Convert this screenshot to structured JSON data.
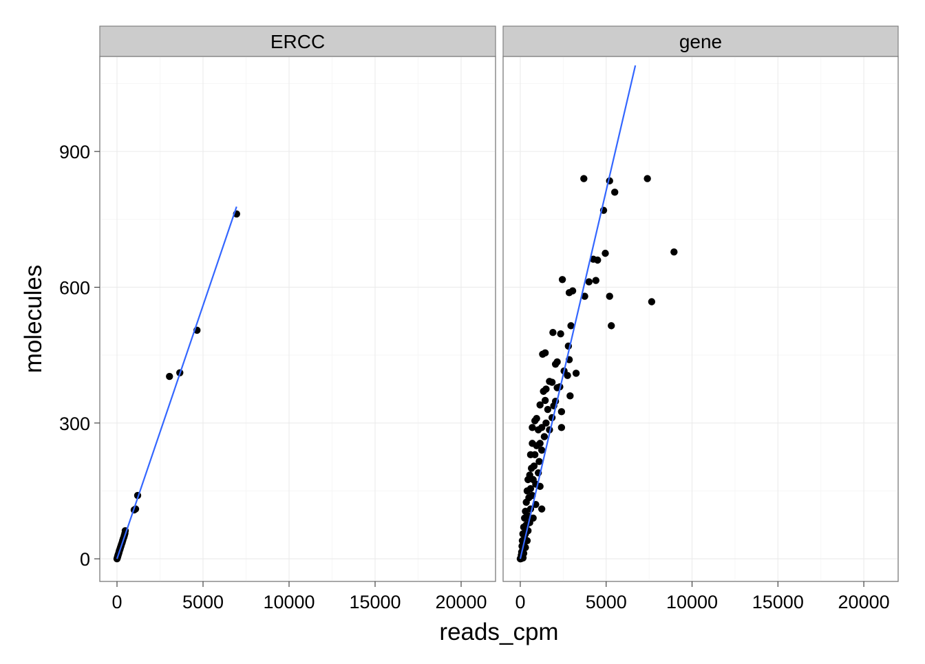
{
  "chart_data": {
    "type": "scatter",
    "title": "",
    "xlabel": "reads_cpm",
    "ylabel": "molecules",
    "xlim": [
      -1000,
      22000
    ],
    "ylim": [
      -50,
      1110
    ],
    "x_ticks": [
      0,
      5000,
      10000,
      15000,
      20000
    ],
    "x_tick_labels": [
      "0",
      "5000",
      "10000",
      "15000",
      "20000"
    ],
    "y_ticks": [
      0,
      300,
      600,
      900
    ],
    "y_tick_labels": [
      "0",
      "300",
      "600",
      "900"
    ],
    "grid": true,
    "legend": "none",
    "colors": {
      "points": "#000000",
      "fit_line": "#3366ff",
      "strip": "#cccccc",
      "grid": "#ebebeb"
    },
    "panels": [
      {
        "label": "ERCC",
        "points": [
          [
            0,
            0
          ],
          [
            20,
            2
          ],
          [
            30,
            4
          ],
          [
            50,
            6
          ],
          [
            60,
            8
          ],
          [
            80,
            10
          ],
          [
            100,
            12
          ],
          [
            120,
            15
          ],
          [
            140,
            18
          ],
          [
            160,
            20
          ],
          [
            180,
            22
          ],
          [
            200,
            25
          ],
          [
            230,
            28
          ],
          [
            260,
            32
          ],
          [
            300,
            36
          ],
          [
            330,
            40
          ],
          [
            360,
            44
          ],
          [
            400,
            48
          ],
          [
            430,
            52
          ],
          [
            460,
            56
          ],
          [
            480,
            62
          ],
          [
            1000,
            108
          ],
          [
            1080,
            110
          ],
          [
            1200,
            140
          ],
          [
            3050,
            403
          ],
          [
            3650,
            411
          ],
          [
            4650,
            505
          ],
          [
            6950,
            762
          ]
        ],
        "fit": {
          "x": [
            0,
            6950
          ],
          "y": [
            0,
            778
          ]
        }
      },
      {
        "label": "gene",
        "points": [
          [
            3700,
            840
          ],
          [
            5200,
            835
          ],
          [
            7400,
            840
          ],
          [
            5500,
            810
          ],
          [
            4850,
            770
          ],
          [
            8950,
            678
          ],
          [
            4950,
            675
          ],
          [
            4500,
            660
          ],
          [
            4250,
            662
          ],
          [
            4400,
            615
          ],
          [
            4000,
            612
          ],
          [
            2450,
            617
          ],
          [
            3050,
            592
          ],
          [
            2850,
            588
          ],
          [
            3750,
            580
          ],
          [
            5200,
            580
          ],
          [
            7650,
            568
          ],
          [
            2950,
            515
          ],
          [
            5300,
            515
          ],
          [
            1900,
            500
          ],
          [
            2350,
            497
          ],
          [
            2800,
            470
          ],
          [
            2850,
            440
          ],
          [
            2150,
            435
          ],
          [
            2050,
            430
          ],
          [
            1450,
            455
          ],
          [
            1300,
            452
          ],
          [
            2550,
            415
          ],
          [
            3250,
            410
          ],
          [
            2750,
            405
          ],
          [
            1850,
            390
          ],
          [
            1700,
            392
          ],
          [
            2300,
            380
          ],
          [
            2150,
            378
          ],
          [
            1500,
            375
          ],
          [
            2900,
            360
          ],
          [
            1350,
            370
          ],
          [
            1450,
            350
          ],
          [
            2050,
            348
          ],
          [
            1950,
            338
          ],
          [
            1600,
            330
          ],
          [
            2400,
            325
          ],
          [
            1150,
            340
          ],
          [
            1850,
            312
          ],
          [
            1500,
            300
          ],
          [
            2400,
            290
          ],
          [
            950,
            310
          ],
          [
            1250,
            290
          ],
          [
            850,
            305
          ],
          [
            1050,
            285
          ],
          [
            700,
            290
          ],
          [
            1700,
            285
          ],
          [
            1400,
            270
          ],
          [
            1150,
            255
          ],
          [
            950,
            250
          ],
          [
            700,
            255
          ],
          [
            1250,
            240
          ],
          [
            850,
            230
          ],
          [
            1100,
            215
          ],
          [
            600,
            230
          ],
          [
            800,
            205
          ],
          [
            650,
            200
          ],
          [
            1050,
            190
          ],
          [
            550,
            185
          ],
          [
            750,
            175
          ],
          [
            450,
            175
          ],
          [
            900,
            165
          ],
          [
            1150,
            160
          ],
          [
            600,
            155
          ],
          [
            400,
            150
          ],
          [
            700,
            140
          ],
          [
            500,
            135
          ],
          [
            900,
            120
          ],
          [
            350,
            125
          ],
          [
            1250,
            110
          ],
          [
            600,
            110
          ],
          [
            300,
            105
          ],
          [
            450,
            95
          ],
          [
            750,
            90
          ],
          [
            250,
            90
          ],
          [
            550,
            80
          ],
          [
            350,
            75
          ],
          [
            200,
            70
          ],
          [
            450,
            62
          ],
          [
            300,
            55
          ],
          [
            150,
            55
          ],
          [
            250,
            45
          ],
          [
            400,
            40
          ],
          [
            120,
            40
          ],
          [
            200,
            32
          ],
          [
            100,
            28
          ],
          [
            300,
            25
          ],
          [
            150,
            20
          ],
          [
            80,
            15
          ],
          [
            200,
            12
          ],
          [
            60,
            8
          ],
          [
            120,
            5
          ],
          [
            40,
            3
          ],
          [
            80,
            1
          ],
          [
            20,
            0
          ],
          [
            0,
            0
          ],
          [
            160,
            2
          ]
        ],
        "fit": {
          "x": [
            0,
            6700
          ],
          "y": [
            0,
            1090
          ]
        }
      }
    ]
  }
}
